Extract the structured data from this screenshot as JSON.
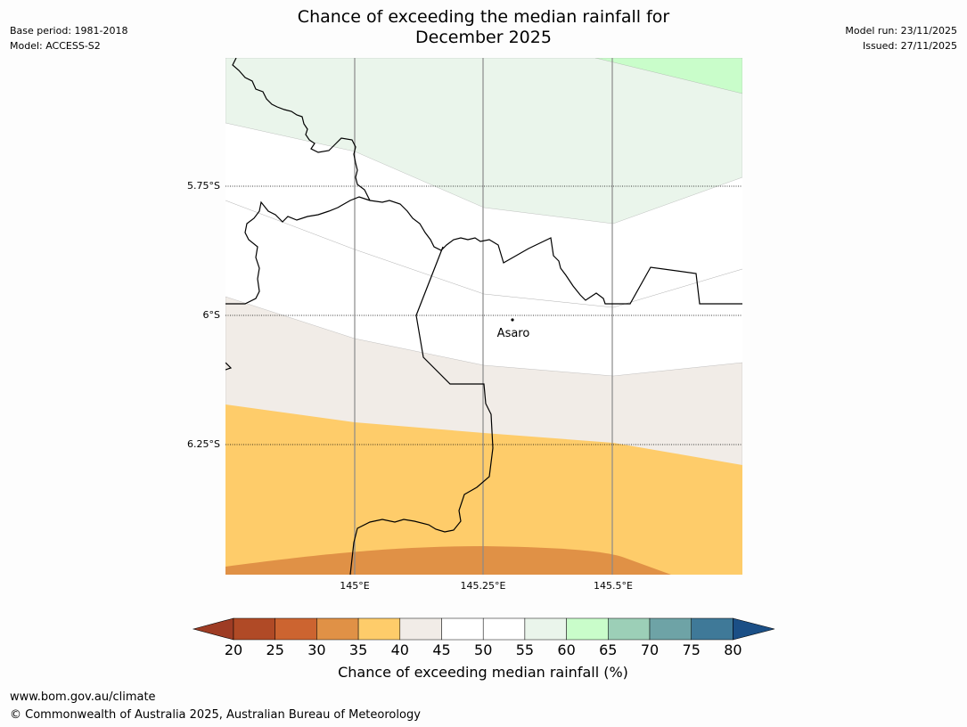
{
  "title": {
    "line1": "Chance of exceeding the median rainfall for",
    "line2": "December 2025"
  },
  "meta_left": {
    "base_period": "Base period: 1981-2018",
    "model": "Model: ACCESS-S2"
  },
  "meta_right": {
    "model_run": "Model run: 23/11/2025",
    "issued": "Issued: 27/11/2025"
  },
  "map": {
    "lat_labels": [
      "5.75°S",
      "6°S",
      "6.25°S"
    ],
    "lon_labels": [
      "145°E",
      "145.25°E",
      "145.5°E"
    ],
    "place_label": "Asaro"
  },
  "colorbar": {
    "ticks": [
      "20",
      "25",
      "30",
      "35",
      "40",
      "45",
      "50",
      "55",
      "60",
      "65",
      "70",
      "75",
      "80"
    ],
    "colors": [
      "#b04a26",
      "#cc6430",
      "#e09146",
      "#fecc6a",
      "#f1ece7",
      "#ffffff",
      "#ffffff",
      "#eaf5eb",
      "#c9fdca",
      "#9ccfb7",
      "#6ea3a6",
      "#3f7998"
    ],
    "under_color": "#9e3c24",
    "over_color": "#1b4f86",
    "label": "Chance of exceeding median rainfall (%)"
  },
  "footer": {
    "url": "www.bom.gov.au/climate",
    "copyright": "© Commonwealth of Australia 2025, Australian Bureau of Meteorology"
  }
}
